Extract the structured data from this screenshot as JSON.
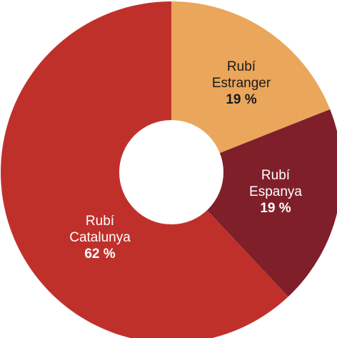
{
  "chart_data": {
    "type": "pie",
    "donut": true,
    "slices": [
      {
        "line1": "Rubí",
        "line2": "Estranger",
        "value": 19,
        "value_label": "19 %",
        "color": "#eaa65a",
        "text_color": "#1a1a1a"
      },
      {
        "line1": "Rubí",
        "line2": "Espanya",
        "value": 19,
        "value_label": "19 %",
        "color": "#7f1f2a",
        "text_color": "#ffffff"
      },
      {
        "line1": "Rubí",
        "line2": "Catalunya",
        "value": 62,
        "value_label": "62 %",
        "color": "#c0302b",
        "text_color": "#ffffff"
      }
    ],
    "background": "#ffffff"
  }
}
